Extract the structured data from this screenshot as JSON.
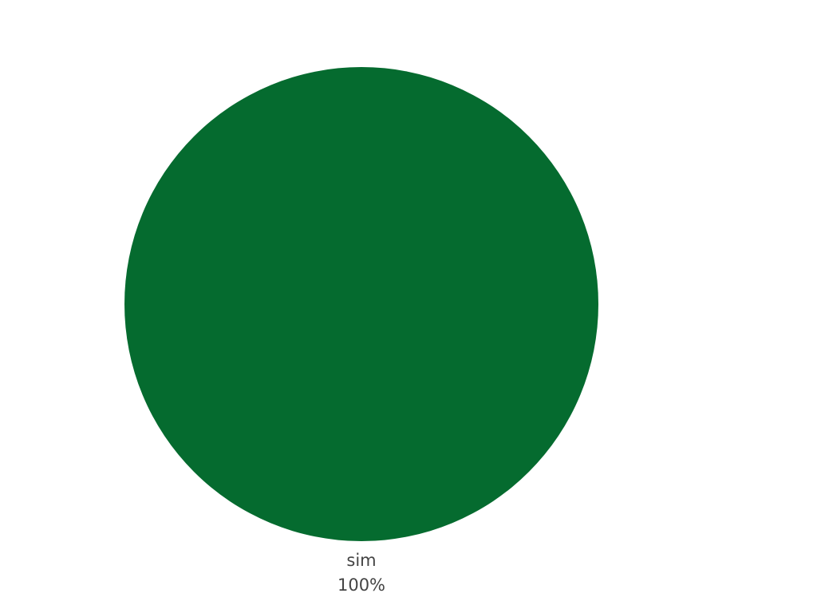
{
  "chart_data": {
    "type": "pie",
    "slices": [
      {
        "label": "sim",
        "value": 100,
        "percent_label": "100%",
        "color": "#056b2f"
      }
    ]
  }
}
